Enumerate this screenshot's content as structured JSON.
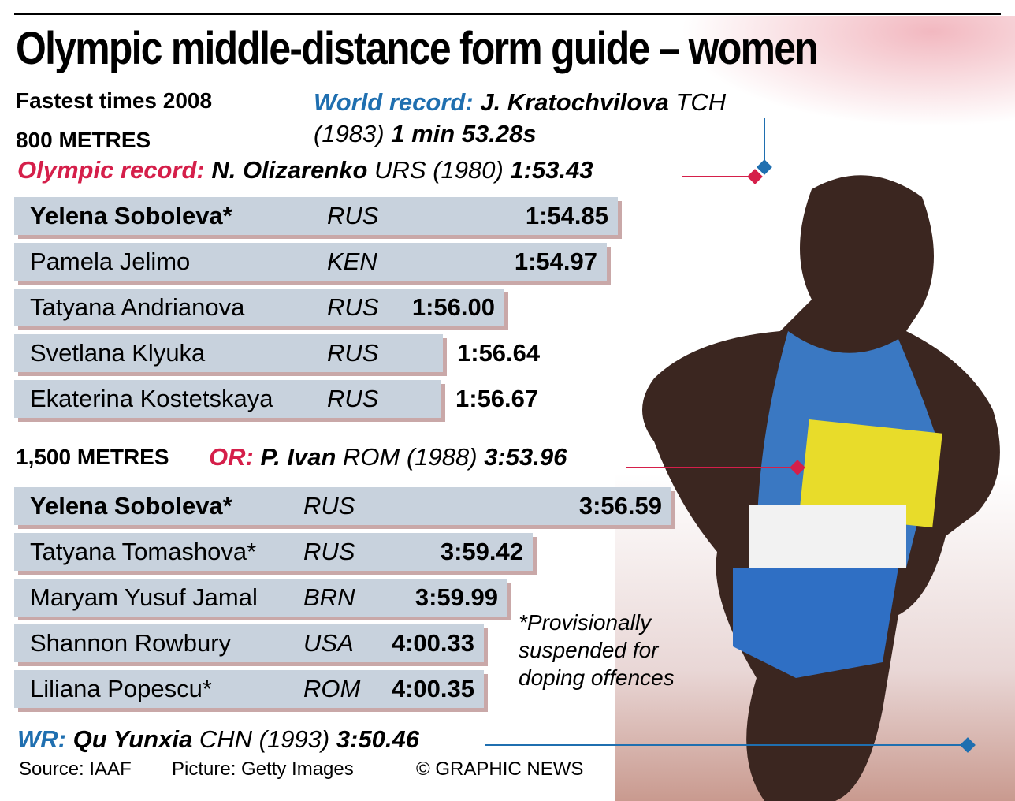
{
  "title": "Olympic middle-distance form guide – women",
  "subtitle": "Fastest times 2008",
  "events": [
    {
      "heading": "800 METRES",
      "world_record": {
        "label": "World record:",
        "holder": "J. Kratochvilova",
        "country": "TCH",
        "year": "(1983)",
        "time": "1 min 53.28s"
      },
      "olympic_record": {
        "label": "Olympic record:",
        "holder": "N. Olizarenko",
        "country": "URS",
        "year": "(1980)",
        "time": "1:53.43"
      },
      "athletes": [
        {
          "name": "Yelena Soboleva*",
          "country": "RUS",
          "time": "1:54.85"
        },
        {
          "name": "Pamela Jelimo",
          "country": "KEN",
          "time": "1:54.97"
        },
        {
          "name": "Tatyana Andrianova",
          "country": "RUS",
          "time": "1:56.00"
        },
        {
          "name": "Svetlana Klyuka",
          "country": "RUS",
          "time": "1:56.64"
        },
        {
          "name": "Ekaterina Kostetskaya",
          "country": "RUS",
          "time": "1:56.67"
        }
      ]
    },
    {
      "heading": "1,500 METRES",
      "olympic_record": {
        "label": "OR:",
        "holder": "P. Ivan",
        "country": "ROM",
        "year": "(1988)",
        "time": "3:53.96"
      },
      "world_record": {
        "label": "WR:",
        "holder": "Qu Yunxia",
        "country": "CHN",
        "year": "(1993)",
        "time": "3:50.46"
      },
      "athletes": [
        {
          "name": "Yelena Soboleva*",
          "country": "RUS",
          "time": "3:56.59"
        },
        {
          "name": "Tatyana Tomashova*",
          "country": "RUS",
          "time": "3:59.42"
        },
        {
          "name": "Maryam Yusuf Jamal",
          "country": "BRN",
          "time": "3:59.99"
        },
        {
          "name": "Shannon Rowbury",
          "country": "USA",
          "time": "4:00.33"
        },
        {
          "name": "Liliana Popescu*",
          "country": "ROM",
          "time": "4:00.35"
        }
      ]
    }
  ],
  "note": "*Provisionally suspended for doping offences",
  "footer": {
    "source": "Source: IAAF",
    "picture": "Picture: Getty Images",
    "credit": "© GRAPHIC NEWS"
  }
}
